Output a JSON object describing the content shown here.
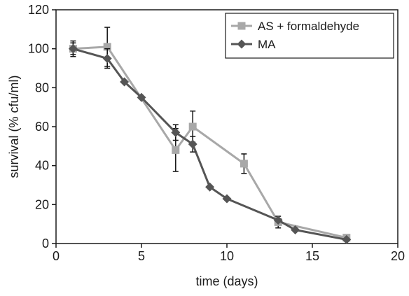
{
  "chart_data": {
    "type": "line",
    "xlabel": "time (days)",
    "ylabel": "survival (% cfu/ml)",
    "xlim": [
      0,
      20
    ],
    "ylim": [
      0,
      120
    ],
    "xticks": [
      0,
      5,
      10,
      15,
      20
    ],
    "yticks": [
      0,
      20,
      40,
      60,
      80,
      100,
      120
    ],
    "grid": false,
    "legend_position": "top-right",
    "series": [
      {
        "name": "AS + formaldehyde",
        "color": "#a8a8a8",
        "marker": "square",
        "x": [
          1,
          3,
          7,
          8,
          11,
          13,
          17
        ],
        "y": [
          100,
          101,
          48,
          60,
          41,
          11,
          3
        ],
        "err": [
          3,
          10,
          11,
          8,
          5,
          3,
          0
        ]
      },
      {
        "name": "MA",
        "color": "#555555",
        "marker": "diamond",
        "x": [
          1,
          3,
          4,
          5,
          7,
          8,
          9,
          10,
          13,
          14,
          17
        ],
        "y": [
          100,
          95,
          83,
          75,
          57,
          51,
          29,
          23,
          12,
          7,
          2
        ],
        "err": [
          4,
          5,
          0,
          0,
          4,
          4,
          0,
          0,
          0,
          0,
          0
        ]
      }
    ]
  }
}
